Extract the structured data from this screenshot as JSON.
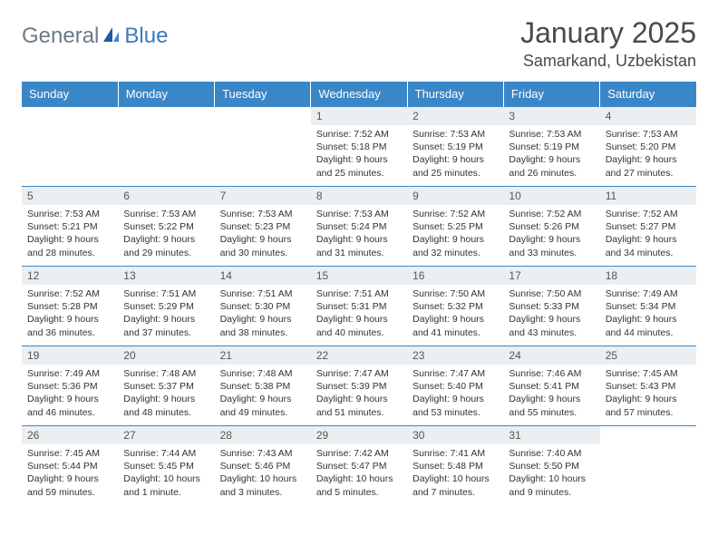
{
  "logo": {
    "text1": "General",
    "text2": "Blue"
  },
  "title": "January 2025",
  "location": "Samarkand, Uzbekistan",
  "colors": {
    "header_bg": "#3a87c7",
    "header_text": "#ffffff",
    "daynum_bg": "#eceff1",
    "border": "#3a87c7",
    "logo_gray": "#6b7a85",
    "logo_blue": "#3a7bbf"
  },
  "weekdays": [
    "Sunday",
    "Monday",
    "Tuesday",
    "Wednesday",
    "Thursday",
    "Friday",
    "Saturday"
  ],
  "weeks": [
    [
      null,
      null,
      null,
      {
        "d": "1",
        "sr": "Sunrise: 7:52 AM",
        "ss": "Sunset: 5:18 PM",
        "dl": "Daylight: 9 hours and 25 minutes."
      },
      {
        "d": "2",
        "sr": "Sunrise: 7:53 AM",
        "ss": "Sunset: 5:19 PM",
        "dl": "Daylight: 9 hours and 25 minutes."
      },
      {
        "d": "3",
        "sr": "Sunrise: 7:53 AM",
        "ss": "Sunset: 5:19 PM",
        "dl": "Daylight: 9 hours and 26 minutes."
      },
      {
        "d": "4",
        "sr": "Sunrise: 7:53 AM",
        "ss": "Sunset: 5:20 PM",
        "dl": "Daylight: 9 hours and 27 minutes."
      }
    ],
    [
      {
        "d": "5",
        "sr": "Sunrise: 7:53 AM",
        "ss": "Sunset: 5:21 PM",
        "dl": "Daylight: 9 hours and 28 minutes."
      },
      {
        "d": "6",
        "sr": "Sunrise: 7:53 AM",
        "ss": "Sunset: 5:22 PM",
        "dl": "Daylight: 9 hours and 29 minutes."
      },
      {
        "d": "7",
        "sr": "Sunrise: 7:53 AM",
        "ss": "Sunset: 5:23 PM",
        "dl": "Daylight: 9 hours and 30 minutes."
      },
      {
        "d": "8",
        "sr": "Sunrise: 7:53 AM",
        "ss": "Sunset: 5:24 PM",
        "dl": "Daylight: 9 hours and 31 minutes."
      },
      {
        "d": "9",
        "sr": "Sunrise: 7:52 AM",
        "ss": "Sunset: 5:25 PM",
        "dl": "Daylight: 9 hours and 32 minutes."
      },
      {
        "d": "10",
        "sr": "Sunrise: 7:52 AM",
        "ss": "Sunset: 5:26 PM",
        "dl": "Daylight: 9 hours and 33 minutes."
      },
      {
        "d": "11",
        "sr": "Sunrise: 7:52 AM",
        "ss": "Sunset: 5:27 PM",
        "dl": "Daylight: 9 hours and 34 minutes."
      }
    ],
    [
      {
        "d": "12",
        "sr": "Sunrise: 7:52 AM",
        "ss": "Sunset: 5:28 PM",
        "dl": "Daylight: 9 hours and 36 minutes."
      },
      {
        "d": "13",
        "sr": "Sunrise: 7:51 AM",
        "ss": "Sunset: 5:29 PM",
        "dl": "Daylight: 9 hours and 37 minutes."
      },
      {
        "d": "14",
        "sr": "Sunrise: 7:51 AM",
        "ss": "Sunset: 5:30 PM",
        "dl": "Daylight: 9 hours and 38 minutes."
      },
      {
        "d": "15",
        "sr": "Sunrise: 7:51 AM",
        "ss": "Sunset: 5:31 PM",
        "dl": "Daylight: 9 hours and 40 minutes."
      },
      {
        "d": "16",
        "sr": "Sunrise: 7:50 AM",
        "ss": "Sunset: 5:32 PM",
        "dl": "Daylight: 9 hours and 41 minutes."
      },
      {
        "d": "17",
        "sr": "Sunrise: 7:50 AM",
        "ss": "Sunset: 5:33 PM",
        "dl": "Daylight: 9 hours and 43 minutes."
      },
      {
        "d": "18",
        "sr": "Sunrise: 7:49 AM",
        "ss": "Sunset: 5:34 PM",
        "dl": "Daylight: 9 hours and 44 minutes."
      }
    ],
    [
      {
        "d": "19",
        "sr": "Sunrise: 7:49 AM",
        "ss": "Sunset: 5:36 PM",
        "dl": "Daylight: 9 hours and 46 minutes."
      },
      {
        "d": "20",
        "sr": "Sunrise: 7:48 AM",
        "ss": "Sunset: 5:37 PM",
        "dl": "Daylight: 9 hours and 48 minutes."
      },
      {
        "d": "21",
        "sr": "Sunrise: 7:48 AM",
        "ss": "Sunset: 5:38 PM",
        "dl": "Daylight: 9 hours and 49 minutes."
      },
      {
        "d": "22",
        "sr": "Sunrise: 7:47 AM",
        "ss": "Sunset: 5:39 PM",
        "dl": "Daylight: 9 hours and 51 minutes."
      },
      {
        "d": "23",
        "sr": "Sunrise: 7:47 AM",
        "ss": "Sunset: 5:40 PM",
        "dl": "Daylight: 9 hours and 53 minutes."
      },
      {
        "d": "24",
        "sr": "Sunrise: 7:46 AM",
        "ss": "Sunset: 5:41 PM",
        "dl": "Daylight: 9 hours and 55 minutes."
      },
      {
        "d": "25",
        "sr": "Sunrise: 7:45 AM",
        "ss": "Sunset: 5:43 PM",
        "dl": "Daylight: 9 hours and 57 minutes."
      }
    ],
    [
      {
        "d": "26",
        "sr": "Sunrise: 7:45 AM",
        "ss": "Sunset: 5:44 PM",
        "dl": "Daylight: 9 hours and 59 minutes."
      },
      {
        "d": "27",
        "sr": "Sunrise: 7:44 AM",
        "ss": "Sunset: 5:45 PM",
        "dl": "Daylight: 10 hours and 1 minute."
      },
      {
        "d": "28",
        "sr": "Sunrise: 7:43 AM",
        "ss": "Sunset: 5:46 PM",
        "dl": "Daylight: 10 hours and 3 minutes."
      },
      {
        "d": "29",
        "sr": "Sunrise: 7:42 AM",
        "ss": "Sunset: 5:47 PM",
        "dl": "Daylight: 10 hours and 5 minutes."
      },
      {
        "d": "30",
        "sr": "Sunrise: 7:41 AM",
        "ss": "Sunset: 5:48 PM",
        "dl": "Daylight: 10 hours and 7 minutes."
      },
      {
        "d": "31",
        "sr": "Sunrise: 7:40 AM",
        "ss": "Sunset: 5:50 PM",
        "dl": "Daylight: 10 hours and 9 minutes."
      },
      null
    ]
  ]
}
